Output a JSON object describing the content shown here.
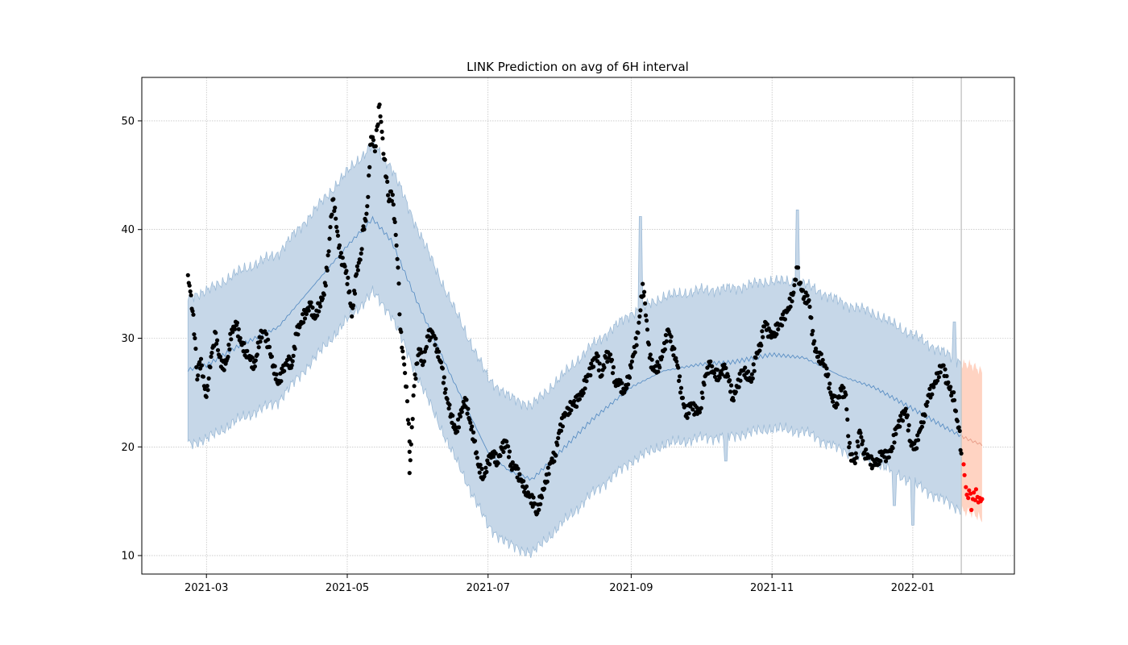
{
  "chart_data": {
    "type": "scatter",
    "title": "LINK Prediction on avg of 6H interval",
    "xlabel": "",
    "ylabel": "",
    "x_axis": {
      "type": "date",
      "range": [
        "2021-02-01",
        "2022-02-14"
      ],
      "ticks": [
        "2021-03-01",
        "2021-05-01",
        "2021-07-01",
        "2021-09-01",
        "2021-11-01",
        "2022-01-01"
      ],
      "tick_labels": [
        "2021-03",
        "2021-05",
        "2021-07",
        "2021-09",
        "2021-11",
        "2022-01"
      ]
    },
    "y_axis": {
      "range": [
        8.3,
        54
      ],
      "ticks": [
        10,
        20,
        30,
        40,
        50
      ],
      "tick_labels": [
        "10",
        "20",
        "30",
        "40",
        "50"
      ]
    },
    "grid": true,
    "cutoff_date": "2022-01-22",
    "colors": {
      "observed": "#000000",
      "actual_future": "#ff0000",
      "forecast_line": "#5b8fc4",
      "band": "#c6d7e8",
      "band_edge": "#9dbbd7",
      "future_band": "#ffd3c2",
      "future_line": "#e69a85",
      "cutoff_line": "#c8c8c8"
    },
    "series": [
      {
        "role": "observed",
        "points": [
          [
            "2021-02-21",
            35.8
          ],
          [
            "2021-02-22",
            34.3
          ],
          [
            "2021-02-23",
            32.5
          ],
          [
            "2021-02-24",
            30.0
          ],
          [
            "2021-02-25",
            26.2
          ],
          [
            "2021-02-26",
            27.8
          ],
          [
            "2021-02-27",
            27.5
          ],
          [
            "2021-02-28",
            25.6
          ],
          [
            "2021-03-01",
            24.6
          ],
          [
            "2021-03-02",
            26.3
          ],
          [
            "2021-03-03",
            28.3
          ],
          [
            "2021-03-04",
            29.3
          ],
          [
            "2021-03-05",
            30.5
          ],
          [
            "2021-03-06",
            28.9
          ],
          [
            "2021-03-08",
            27.2
          ],
          [
            "2021-03-10",
            28.1
          ],
          [
            "2021-03-12",
            30.8
          ],
          [
            "2021-03-14",
            31.2
          ],
          [
            "2021-03-16",
            29.6
          ],
          [
            "2021-03-18",
            28.8
          ],
          [
            "2021-03-20",
            28.0
          ],
          [
            "2021-03-22",
            27.4
          ],
          [
            "2021-03-24",
            30.1
          ],
          [
            "2021-03-26",
            30.6
          ],
          [
            "2021-03-28",
            29.2
          ],
          [
            "2021-03-30",
            27.5
          ],
          [
            "2021-04-01",
            25.8
          ],
          [
            "2021-04-03",
            26.9
          ],
          [
            "2021-04-05",
            28.0
          ],
          [
            "2021-04-07",
            27.5
          ],
          [
            "2021-04-09",
            30.4
          ],
          [
            "2021-04-11",
            31.5
          ],
          [
            "2021-04-13",
            32.4
          ],
          [
            "2021-04-15",
            33.0
          ],
          [
            "2021-04-17",
            31.8
          ],
          [
            "2021-04-19",
            33.2
          ],
          [
            "2021-04-21",
            34.0
          ],
          [
            "2021-04-23",
            38.0
          ],
          [
            "2021-04-24",
            41.2
          ],
          [
            "2021-04-25",
            42.8
          ],
          [
            "2021-04-26",
            41.0
          ],
          [
            "2021-04-28",
            37.5
          ],
          [
            "2021-04-30",
            36.6
          ],
          [
            "2021-05-02",
            34.3
          ],
          [
            "2021-05-03",
            32.0
          ],
          [
            "2021-05-05",
            35.9
          ],
          [
            "2021-05-07",
            37.8
          ],
          [
            "2021-05-08",
            40.3
          ],
          [
            "2021-05-09",
            40.8
          ],
          [
            "2021-05-10",
            43.0
          ],
          [
            "2021-05-11",
            47.8
          ],
          [
            "2021-05-12",
            48.5
          ],
          [
            "2021-05-13",
            47.2
          ],
          [
            "2021-05-14",
            49.5
          ],
          [
            "2021-05-15",
            51.5
          ],
          [
            "2021-05-16",
            49.0
          ],
          [
            "2021-05-17",
            46.5
          ],
          [
            "2021-05-18",
            44.8
          ],
          [
            "2021-05-19",
            42.6
          ],
          [
            "2021-05-20",
            43.5
          ],
          [
            "2021-05-21",
            42.3
          ],
          [
            "2021-05-22",
            39.5
          ],
          [
            "2021-05-23",
            36.5
          ],
          [
            "2021-05-24",
            30.8
          ],
          [
            "2021-05-25",
            28.8
          ],
          [
            "2021-05-26",
            26.8
          ],
          [
            "2021-05-27",
            24.2
          ],
          [
            "2021-05-28",
            20.5
          ],
          [
            "2021-05-28",
            17.6
          ],
          [
            "2021-05-30",
            25.6
          ],
          [
            "2021-06-01",
            29.0
          ],
          [
            "2021-06-03",
            27.8
          ],
          [
            "2021-06-05",
            30.2
          ],
          [
            "2021-06-07",
            30.5
          ],
          [
            "2021-06-09",
            29.0
          ],
          [
            "2021-06-11",
            27.3
          ],
          [
            "2021-06-13",
            24.5
          ],
          [
            "2021-06-15",
            23.0
          ],
          [
            "2021-06-17",
            21.3
          ],
          [
            "2021-06-19",
            22.8
          ],
          [
            "2021-06-21",
            24.5
          ],
          [
            "2021-06-23",
            22.5
          ],
          [
            "2021-06-25",
            20.5
          ],
          [
            "2021-06-27",
            18.2
          ],
          [
            "2021-06-29",
            17.2
          ],
          [
            "2021-07-01",
            18.5
          ],
          [
            "2021-07-03",
            19.5
          ],
          [
            "2021-07-05",
            18.6
          ],
          [
            "2021-07-07",
            19.8
          ],
          [
            "2021-07-09",
            20.5
          ],
          [
            "2021-07-11",
            18.4
          ],
          [
            "2021-07-13",
            18.0
          ],
          [
            "2021-07-15",
            17.0
          ],
          [
            "2021-07-17",
            16.2
          ],
          [
            "2021-07-19",
            15.4
          ],
          [
            "2021-07-21",
            14.8
          ],
          [
            "2021-07-22",
            13.8
          ],
          [
            "2021-07-24",
            15.5
          ],
          [
            "2021-07-26",
            16.7
          ],
          [
            "2021-07-28",
            18.5
          ],
          [
            "2021-07-30",
            19.3
          ],
          [
            "2021-08-01",
            21.5
          ],
          [
            "2021-08-03",
            22.8
          ],
          [
            "2021-08-05",
            23.5
          ],
          [
            "2021-08-07",
            24.0
          ],
          [
            "2021-08-09",
            24.3
          ],
          [
            "2021-08-11",
            25.2
          ],
          [
            "2021-08-13",
            26.5
          ],
          [
            "2021-08-15",
            27.3
          ],
          [
            "2021-08-17",
            28.6
          ],
          [
            "2021-08-19",
            26.5
          ],
          [
            "2021-08-21",
            28.2
          ],
          [
            "2021-08-23",
            28.5
          ],
          [
            "2021-08-25",
            26.0
          ],
          [
            "2021-08-27",
            25.8
          ],
          [
            "2021-08-29",
            25.0
          ],
          [
            "2021-08-31",
            26.5
          ],
          [
            "2021-09-02",
            28.5
          ],
          [
            "2021-09-04",
            30.5
          ],
          [
            "2021-09-06",
            35.0
          ],
          [
            "2021-09-07",
            33.2
          ],
          [
            "2021-09-09",
            28.2
          ],
          [
            "2021-09-11",
            27.0
          ],
          [
            "2021-09-13",
            27.5
          ],
          [
            "2021-09-15",
            28.8
          ],
          [
            "2021-09-17",
            30.8
          ],
          [
            "2021-09-19",
            29.2
          ],
          [
            "2021-09-21",
            27.5
          ],
          [
            "2021-09-23",
            24.5
          ],
          [
            "2021-09-25",
            23.0
          ],
          [
            "2021-09-27",
            24.0
          ],
          [
            "2021-09-29",
            23.2
          ],
          [
            "2021-10-01",
            23.5
          ],
          [
            "2021-10-03",
            26.5
          ],
          [
            "2021-10-05",
            27.5
          ],
          [
            "2021-10-07",
            26.8
          ],
          [
            "2021-10-09",
            26.5
          ],
          [
            "2021-10-11",
            27.2
          ],
          [
            "2021-10-13",
            26.5
          ],
          [
            "2021-10-15",
            24.5
          ],
          [
            "2021-10-17",
            25.5
          ],
          [
            "2021-10-19",
            27.0
          ],
          [
            "2021-10-21",
            26.8
          ],
          [
            "2021-10-23",
            26.0
          ],
          [
            "2021-10-25",
            28.2
          ],
          [
            "2021-10-27",
            29.5
          ],
          [
            "2021-10-29",
            31.5
          ],
          [
            "2021-10-31",
            30.2
          ],
          [
            "2021-11-02",
            30.5
          ],
          [
            "2021-11-04",
            31.2
          ],
          [
            "2021-11-06",
            31.8
          ],
          [
            "2021-11-08",
            32.8
          ],
          [
            "2021-11-10",
            34.0
          ],
          [
            "2021-11-12",
            36.5
          ],
          [
            "2021-11-13",
            35.0
          ],
          [
            "2021-11-15",
            33.8
          ],
          [
            "2021-11-17",
            33.5
          ],
          [
            "2021-11-19",
            29.5
          ],
          [
            "2021-11-21",
            28.3
          ],
          [
            "2021-11-23",
            28.0
          ],
          [
            "2021-11-25",
            26.5
          ],
          [
            "2021-11-27",
            24.5
          ],
          [
            "2021-11-29",
            24.0
          ],
          [
            "2021-12-01",
            25.2
          ],
          [
            "2021-12-03",
            24.8
          ],
          [
            "2021-12-04",
            21.0
          ],
          [
            "2021-12-05",
            19.3
          ],
          [
            "2021-12-07",
            18.5
          ],
          [
            "2021-12-09",
            21.5
          ],
          [
            "2021-12-11",
            19.5
          ],
          [
            "2021-12-13",
            19.0
          ],
          [
            "2021-12-15",
            18.3
          ],
          [
            "2021-12-17",
            18.8
          ],
          [
            "2021-12-19",
            19.5
          ],
          [
            "2021-12-21",
            19.0
          ],
          [
            "2021-12-23",
            20.0
          ],
          [
            "2021-12-25",
            21.8
          ],
          [
            "2021-12-27",
            22.5
          ],
          [
            "2021-12-29",
            23.5
          ],
          [
            "2021-12-31",
            20.5
          ],
          [
            "2022-01-02",
            19.8
          ],
          [
            "2022-01-04",
            21.5
          ],
          [
            "2022-01-06",
            23.0
          ],
          [
            "2022-01-08",
            24.8
          ],
          [
            "2022-01-10",
            25.5
          ],
          [
            "2022-01-12",
            26.8
          ],
          [
            "2022-01-14",
            27.5
          ],
          [
            "2022-01-16",
            25.8
          ],
          [
            "2022-01-18",
            25.0
          ],
          [
            "2022-01-19",
            24.3
          ],
          [
            "2022-01-20",
            22.5
          ],
          [
            "2022-01-21",
            21.8
          ],
          [
            "2022-01-22",
            19.4
          ]
        ]
      },
      {
        "role": "actual_future",
        "points": [
          [
            "2022-01-23",
            18.4
          ],
          [
            "2022-01-23",
            17.4
          ],
          [
            "2022-01-24",
            16.3
          ],
          [
            "2022-01-24",
            15.6
          ],
          [
            "2022-01-25",
            15.3
          ],
          [
            "2022-01-25",
            16.0
          ],
          [
            "2022-01-26",
            15.7
          ],
          [
            "2022-01-26",
            14.2
          ],
          [
            "2022-01-27",
            15.2
          ],
          [
            "2022-01-27",
            15.8
          ],
          [
            "2022-01-28",
            15.1
          ],
          [
            "2022-01-28",
            16.1
          ],
          [
            "2022-01-29",
            15.4
          ],
          [
            "2022-01-29",
            14.9
          ],
          [
            "2022-01-30",
            15.3
          ],
          [
            "2022-01-30",
            15.0
          ],
          [
            "2022-01-31",
            15.2
          ]
        ]
      }
    ],
    "forecast": {
      "points": [
        [
          "2021-02-21",
          27.1
        ],
        [
          "2021-03-01",
          27.5
        ],
        [
          "2021-03-15",
          29.3
        ],
        [
          "2021-04-01",
          31.0
        ],
        [
          "2021-04-15",
          34.5
        ],
        [
          "2021-05-01",
          38.5
        ],
        [
          "2021-05-12",
          41.0
        ],
        [
          "2021-05-20",
          39.0
        ],
        [
          "2021-06-01",
          33.0
        ],
        [
          "2021-06-15",
          26.5
        ],
        [
          "2021-07-01",
          19.5
        ],
        [
          "2021-07-10",
          17.8
        ],
        [
          "2021-07-20",
          17.0
        ],
        [
          "2021-08-01",
          19.5
        ],
        [
          "2021-08-15",
          22.5
        ],
        [
          "2021-09-01",
          25.5
        ],
        [
          "2021-09-15",
          27.0
        ],
        [
          "2021-10-01",
          27.6
        ],
        [
          "2021-10-15",
          27.8
        ],
        [
          "2021-11-01",
          28.5
        ],
        [
          "2021-11-15",
          28.2
        ],
        [
          "2021-12-01",
          26.5
        ],
        [
          "2021-12-15",
          25.5
        ],
        [
          "2022-01-01",
          23.5
        ],
        [
          "2022-01-15",
          21.8
        ],
        [
          "2022-01-22",
          21.0
        ],
        [
          "2022-01-26",
          20.6
        ],
        [
          "2022-01-31",
          20.2
        ]
      ],
      "band_width": 6.8,
      "future_band_width": 6.8,
      "spikes": [
        {
          "date": "2021-09-05",
          "top": 41.2
        },
        {
          "date": "2021-11-12",
          "top": 41.8
        },
        {
          "date": "2022-01-19",
          "top": 31.5
        }
      ],
      "dips": [
        {
          "date": "2021-10-12",
          "bottom": 18.7
        },
        {
          "date": "2021-12-24",
          "bottom": 14.6
        },
        {
          "date": "2022-01-01",
          "bottom": 12.8
        }
      ]
    }
  }
}
